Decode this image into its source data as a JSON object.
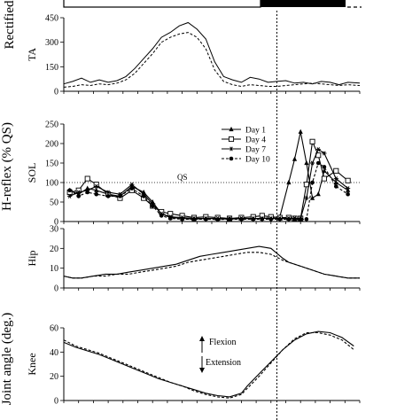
{
  "header": {
    "phase_left": "",
    "phase_right": "",
    "left_label": "Rectified"
  },
  "chart_data": [
    {
      "type": "line",
      "id": "ta",
      "ylabel": "TA",
      "ylim": [
        0,
        450
      ],
      "yticks": [
        0,
        150,
        300,
        450
      ],
      "xlim": [
        0,
        100
      ],
      "series": [
        {
          "style": "solid",
          "x": [
            0,
            3,
            6,
            9,
            12,
            15,
            18,
            21,
            24,
            27,
            30,
            33,
            36,
            39,
            42,
            45,
            48,
            51,
            54,
            57,
            60,
            63,
            66,
            69,
            72,
            75,
            78,
            81,
            84,
            87,
            90,
            93,
            96,
            100
          ],
          "y": [
            45,
            60,
            80,
            55,
            70,
            55,
            65,
            90,
            140,
            200,
            260,
            330,
            360,
            400,
            420,
            380,
            320,
            180,
            90,
            70,
            55,
            85,
            75,
            55,
            60,
            65,
            50,
            55,
            45,
            60,
            55,
            40,
            55,
            50
          ]
        },
        {
          "style": "dashed",
          "x": [
            0,
            3,
            6,
            9,
            12,
            15,
            18,
            21,
            24,
            27,
            30,
            33,
            36,
            39,
            42,
            45,
            48,
            51,
            54,
            57,
            60,
            63,
            66,
            69,
            72,
            75,
            78,
            81,
            84,
            87,
            90,
            93,
            96,
            100
          ],
          "y": [
            25,
            30,
            40,
            35,
            45,
            40,
            50,
            70,
            110,
            170,
            230,
            300,
            330,
            350,
            360,
            330,
            260,
            130,
            60,
            40,
            30,
            40,
            35,
            30,
            30,
            35,
            40,
            45,
            50,
            45,
            40,
            35,
            40,
            35
          ]
        }
      ]
    },
    {
      "type": "line",
      "id": "sol",
      "ylabel": "SOL",
      "ylim": [
        0,
        250
      ],
      "yticks": [
        0,
        50,
        100,
        150,
        200,
        250
      ],
      "xlim": [
        0,
        100
      ],
      "reference_line": {
        "y": 100,
        "label": "QS"
      },
      "legend": {
        "position": "top-right"
      },
      "series": [
        {
          "name": "Day 1",
          "marker": "triangle",
          "line": "solid",
          "x": [
            2,
            5,
            8,
            11,
            15,
            19,
            23,
            27,
            30,
            33,
            36,
            40,
            44,
            48,
            52,
            56,
            60,
            64,
            67,
            70,
            73,
            76,
            78,
            80,
            82,
            84,
            86,
            88,
            92,
            96
          ],
          "y": [
            80,
            70,
            85,
            80,
            70,
            65,
            90,
            75,
            50,
            20,
            10,
            8,
            6,
            8,
            7,
            6,
            8,
            7,
            8,
            10,
            12,
            100,
            160,
            230,
            150,
            60,
            70,
            130,
            100,
            80
          ]
        },
        {
          "name": "Day 4",
          "marker": "square",
          "line": "solid",
          "x": [
            2,
            5,
            8,
            11,
            15,
            19,
            23,
            27,
            30,
            33,
            36,
            40,
            44,
            48,
            52,
            56,
            60,
            64,
            67,
            70,
            73,
            76,
            78,
            80,
            82,
            84,
            86,
            88,
            92,
            96
          ],
          "y": [
            75,
            80,
            110,
            95,
            70,
            60,
            80,
            60,
            40,
            25,
            20,
            15,
            10,
            12,
            10,
            8,
            10,
            12,
            15,
            12,
            10,
            10,
            8,
            8,
            95,
            205,
            170,
            110,
            130,
            105
          ]
        },
        {
          "name": "Day 7",
          "marker": "star",
          "line": "solid",
          "x": [
            2,
            5,
            8,
            11,
            15,
            19,
            23,
            27,
            30,
            33,
            36,
            40,
            44,
            48,
            52,
            56,
            60,
            64,
            67,
            70,
            73,
            76,
            78,
            80,
            82,
            84,
            86,
            88,
            92,
            96
          ],
          "y": [
            65,
            75,
            80,
            90,
            75,
            70,
            95,
            70,
            45,
            20,
            12,
            10,
            8,
            8,
            8,
            7,
            8,
            8,
            8,
            8,
            8,
            8,
            8,
            8,
            60,
            150,
            185,
            175,
            110,
            85
          ]
        },
        {
          "name": "Day 10",
          "marker": "circle",
          "line": "dashed",
          "x": [
            2,
            5,
            8,
            11,
            15,
            19,
            23,
            27,
            30,
            33,
            36,
            40,
            44,
            48,
            52,
            56,
            60,
            64,
            67,
            70,
            73,
            76,
            78,
            80,
            82,
            84,
            86,
            88,
            92,
            96
          ],
          "y": [
            80,
            65,
            75,
            70,
            65,
            65,
            85,
            65,
            40,
            15,
            8,
            6,
            6,
            6,
            5,
            6,
            6,
            6,
            6,
            6,
            6,
            6,
            6,
            6,
            6,
            100,
            150,
            140,
            90,
            70
          ]
        }
      ]
    },
    {
      "type": "line",
      "id": "hip",
      "ylabel": "Hip",
      "ylim": [
        0,
        30
      ],
      "yticks": [
        0,
        10,
        20,
        30
      ],
      "xlim": [
        0,
        100
      ],
      "series": [
        {
          "style": "solid",
          "x": [
            0,
            3,
            6,
            10,
            14,
            18,
            22,
            26,
            30,
            34,
            38,
            42,
            46,
            50,
            54,
            58,
            62,
            66,
            70,
            74,
            76,
            80,
            84,
            88,
            92,
            96,
            100
          ],
          "y": [
            6,
            5,
            5,
            6,
            7,
            7,
            8,
            9,
            10,
            11,
            12,
            14,
            16,
            17,
            18,
            19,
            20,
            21,
            20,
            15,
            13,
            11,
            9,
            7,
            6,
            5,
            5
          ]
        },
        {
          "style": "dashed",
          "x": [
            0,
            3,
            6,
            10,
            14,
            18,
            22,
            26,
            30,
            34,
            38,
            42,
            46,
            50,
            54,
            58,
            62,
            66,
            70,
            74,
            76,
            80,
            84,
            88,
            92,
            96,
            100
          ],
          "y": [
            6,
            5,
            5,
            6,
            6,
            7,
            7,
            8,
            9,
            10,
            11,
            13,
            14,
            15,
            16,
            17,
            18,
            18,
            17,
            14,
            13,
            11,
            9,
            7,
            6,
            5,
            5
          ]
        }
      ]
    },
    {
      "type": "line",
      "id": "knee",
      "ylabel": "Knee",
      "ylim": [
        0,
        60
      ],
      "yticks": [
        0,
        20,
        40,
        60
      ],
      "xlim": [
        0,
        100
      ],
      "annotations": {
        "up": "Flexion",
        "down": "Extension"
      },
      "series": [
        {
          "style": "solid",
          "x": [
            0,
            4,
            8,
            12,
            16,
            20,
            24,
            28,
            32,
            36,
            40,
            44,
            48,
            52,
            56,
            60,
            62,
            66,
            70,
            74,
            78,
            82,
            86,
            90,
            94,
            98
          ],
          "y": [
            48,
            44,
            41,
            38,
            34,
            30,
            26,
            22,
            18,
            15,
            12,
            9,
            6,
            4,
            3,
            6,
            12,
            22,
            32,
            42,
            50,
            55,
            57,
            56,
            52,
            45
          ]
        },
        {
          "style": "dashed",
          "x": [
            0,
            4,
            8,
            12,
            16,
            20,
            24,
            28,
            32,
            36,
            40,
            44,
            48,
            52,
            56,
            60,
            62,
            66,
            70,
            74,
            78,
            82,
            86,
            90,
            94,
            98
          ],
          "y": [
            50,
            45,
            42,
            39,
            35,
            31,
            27,
            23,
            19,
            15,
            12,
            8,
            5,
            3,
            2,
            5,
            10,
            20,
            31,
            42,
            51,
            56,
            56,
            54,
            50,
            42
          ]
        }
      ]
    }
  ],
  "axis_titles": {
    "hreflex": "H-reflex (% QS)",
    "joint": "Joint angle (deg.)"
  },
  "vertical_marker_x": 72
}
